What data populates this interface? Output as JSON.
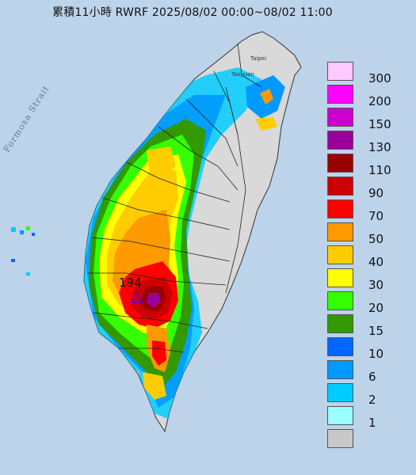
{
  "title": "累積11小時 RWRF 2025/08/02 00:00~08/02 11:00",
  "sea_label": "Formosa Strait",
  "places": {
    "taipei": "Taipei",
    "taoyuan": "Taoyuan"
  },
  "peak_value": "194",
  "colors": {
    "ocean": "#bcd3ea",
    "land": "#d9d9d9",
    "county_line": "#222222",
    "peak_marker": "#7a00a0"
  },
  "legend": [
    {
      "label": "300",
      "color": "#ffc8ff"
    },
    {
      "label": "200",
      "color": "#ff00ff"
    },
    {
      "label": "150",
      "color": "#cc00cc"
    },
    {
      "label": "130",
      "color": "#990099"
    },
    {
      "label": "110",
      "color": "#990000"
    },
    {
      "label": "90",
      "color": "#cc0000"
    },
    {
      "label": "70",
      "color": "#ff0000"
    },
    {
      "label": "50",
      "color": "#ff9900"
    },
    {
      "label": "40",
      "color": "#ffcc00"
    },
    {
      "label": "30",
      "color": "#ffff00"
    },
    {
      "label": "20",
      "color": "#33ff00"
    },
    {
      "label": "15",
      "color": "#339900"
    },
    {
      "label": "10",
      "color": "#0066ff"
    },
    {
      "label": "6",
      "color": "#0099ff"
    },
    {
      "label": "2",
      "color": "#00ccff"
    },
    {
      "label": "1",
      "color": "#99ffff"
    },
    {
      "label": "",
      "color": "#c8c8c8"
    }
  ]
}
